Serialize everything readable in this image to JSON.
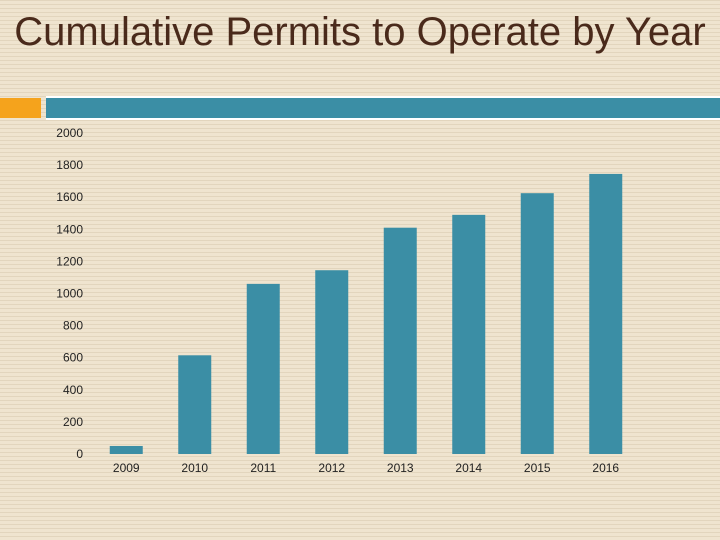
{
  "slide": {
    "title": "Cumulative Permits to Operate by Year"
  },
  "colors": {
    "bar": "#3b8ea5",
    "accent_orange": "#f5a31c",
    "title_text": "#4a2a1b"
  },
  "chart_data": {
    "type": "bar",
    "title": "Cumulative Permits to Operate by Year",
    "xlabel": "",
    "ylabel": "",
    "categories": [
      "2009",
      "2010",
      "2011",
      "2012",
      "2013",
      "2014",
      "2015",
      "2016"
    ],
    "values": [
      50,
      615,
      1060,
      1145,
      1410,
      1490,
      1625,
      1745
    ],
    "ylim": [
      0,
      2000
    ],
    "yticks": [
      0,
      200,
      400,
      600,
      800,
      1000,
      1200,
      1400,
      1600,
      1800,
      2000
    ],
    "grid": false,
    "legend": "none"
  }
}
